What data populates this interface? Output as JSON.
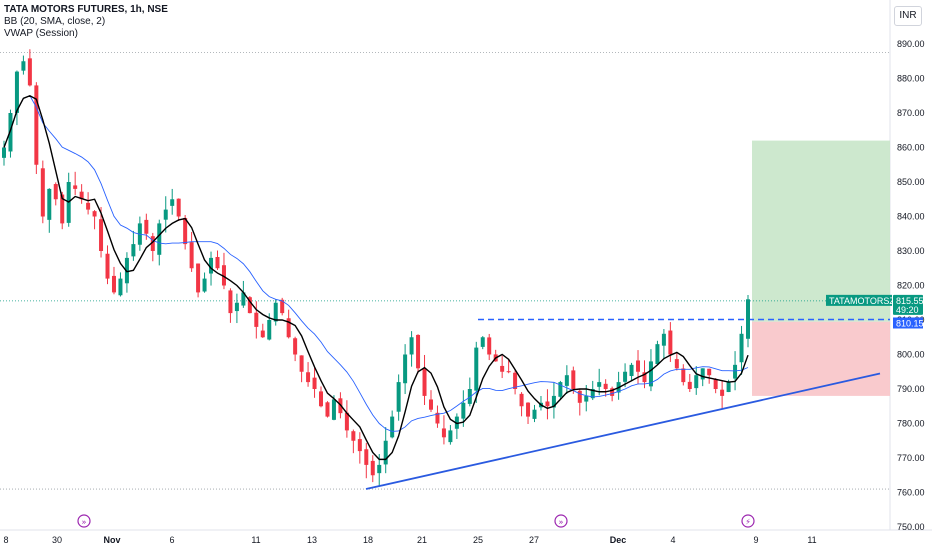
{
  "legend": {
    "title": "TATA MOTORS FUTURES, 1h, NSE",
    "line1": "BB (20, SMA, close, 2)",
    "line2": "VWAP (Session)"
  },
  "currency": "INR",
  "colors": {
    "up": "#089981",
    "down": "#f23645",
    "trendline": "#2a5ae0",
    "bb_basis": "#2962ff",
    "vwap": "#000000",
    "target_zone": "#c8e6c9",
    "stop_zone": "#f8c4c8",
    "price_tag": "#089981",
    "level_tag": "#2962ff",
    "marker": "#9c27b0"
  },
  "chart_data": {
    "type": "candlestick",
    "ylim": [
      750,
      895
    ],
    "y_ticks": [
      "750.00",
      "760.00",
      "770.00",
      "780.00",
      "790.00",
      "800.00",
      "810.00",
      "820.00",
      "830.00",
      "840.00",
      "850.00",
      "860.00",
      "870.00",
      "880.00",
      "890.00"
    ],
    "x_ticks": [
      "8",
      "30",
      "Nov",
      "6",
      "11",
      "13",
      "18",
      "21",
      "25",
      "27",
      "Dec",
      "4",
      "9",
      "11"
    ],
    "events": [
      "split-icon",
      "split-icon",
      "dividend-icon"
    ],
    "last_price": {
      "symbol": "TATAMOTORSZ2024",
      "value": "815.55",
      "countdown": "49:20"
    },
    "level_label": "810.15",
    "horizontal_level": 810.15,
    "dotted_lines": [
      887.5,
      815.55,
      761.0
    ],
    "position": {
      "entry": 809.5,
      "target": 862.0,
      "stop": 788.0
    },
    "trendline": {
      "from": 761,
      "to": 794.5
    },
    "close_path": [
      860,
      870,
      882,
      885,
      878,
      855,
      840,
      848,
      845,
      838,
      850,
      848,
      845,
      842,
      840,
      830,
      822,
      818,
      822,
      828,
      832,
      838,
      835,
      830,
      838,
      842,
      845,
      840,
      832,
      825,
      818,
      822,
      828,
      825,
      820,
      812,
      815,
      818,
      812,
      808,
      805,
      810,
      815,
      812,
      805,
      800,
      795,
      792,
      790,
      785,
      782,
      787,
      783,
      778,
      775,
      772,
      768,
      765,
      768,
      775,
      782,
      792,
      800,
      805,
      796,
      788,
      784,
      780,
      776,
      778,
      782,
      786,
      790,
      802,
      805,
      800,
      798,
      795,
      795,
      790,
      785,
      782,
      784,
      786,
      785,
      788,
      792,
      794,
      790,
      786,
      788,
      790,
      792,
      790,
      788,
      792,
      795,
      797,
      795,
      792,
      798,
      803,
      806,
      800,
      796,
      792,
      790,
      794,
      796,
      794,
      790,
      788,
      792,
      797,
      806,
      816
    ]
  }
}
